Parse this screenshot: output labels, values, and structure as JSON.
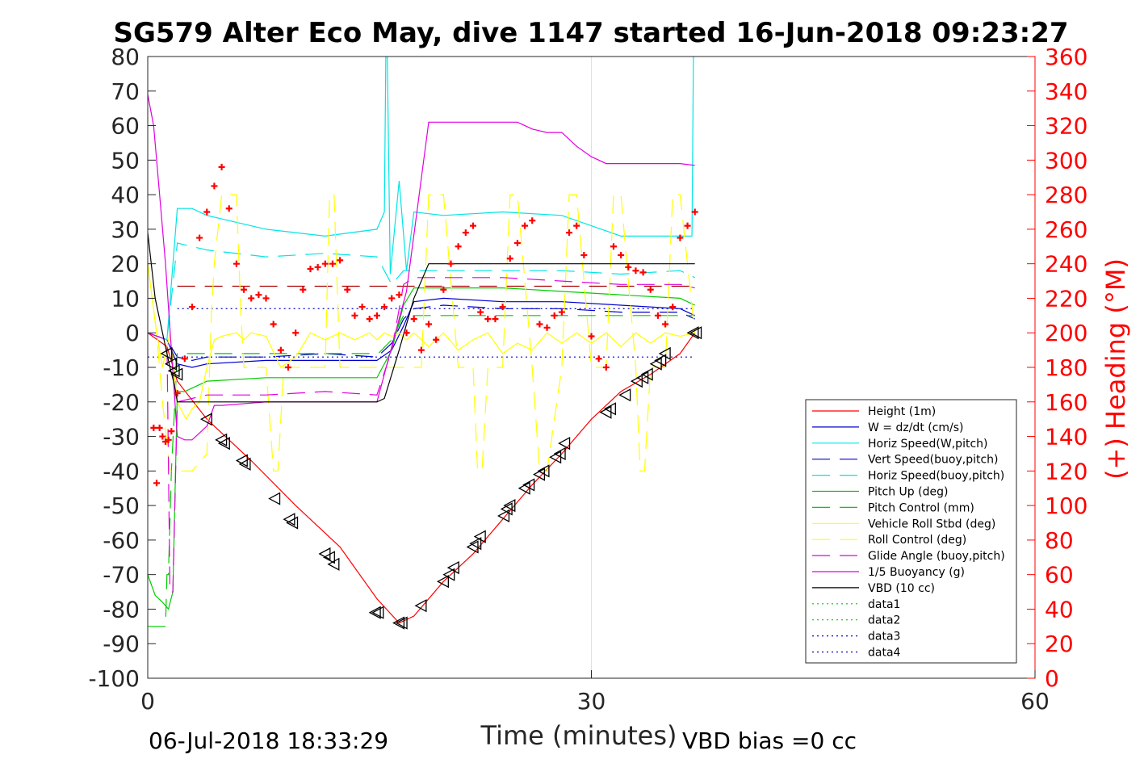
{
  "chart_data": {
    "type": "line",
    "title": "SG579 Alter Eco May, dive 1147 started 16-Jun-2018 09:23:27",
    "xlabel": "Time (minutes)",
    "ylabel_right": "(+) Heading (°M)",
    "xlim": [
      0,
      60
    ],
    "ylim": [
      -100,
      80
    ],
    "ylim_right": [
      0,
      360
    ],
    "xticks": [
      "0",
      "30",
      "60"
    ],
    "yticks": [
      "80",
      "70",
      "60",
      "50",
      "40",
      "30",
      "20",
      "10",
      "0",
      "-10",
      "-20",
      "-30",
      "-40",
      "-50",
      "-60",
      "-70",
      "-80",
      "-90",
      "-100"
    ],
    "yticks_right": [
      "360",
      "340",
      "320",
      "300",
      "280",
      "260",
      "240",
      "220",
      "200",
      "180",
      "160",
      "140",
      "120",
      "100",
      "80",
      "60",
      "40",
      "20",
      "0"
    ],
    "grid": "x only",
    "legend_position": "lower-right",
    "footer_left": "06-Jul-2018 18:33:29",
    "footer_right": "VBD bias =0 cc",
    "series": [
      {
        "name": "Height (1m)",
        "color": "#ff0000",
        "style": "solid",
        "x": [
          0,
          1.3,
          2,
          4,
          7,
          10,
          13,
          15.5,
          17,
          18,
          20,
          22,
          24,
          26,
          28,
          30,
          32,
          34,
          36,
          37
        ],
        "y": [
          0,
          -4,
          -14,
          -25,
          -37,
          -50,
          -62,
          -77,
          -84,
          -82,
          -72,
          -64,
          -54,
          -44,
          -35,
          -25,
          -17,
          -12,
          -6,
          0
        ]
      },
      {
        "name": "W = dz/dt (cm/s)",
        "color": "#0000cc",
        "style": "solid",
        "x": [
          0,
          1.3,
          2,
          3,
          4,
          8,
          12,
          15.5,
          16.5,
          17.3,
          18,
          20,
          24,
          28,
          32,
          36,
          37
        ],
        "y": [
          0,
          -2,
          -9,
          -10,
          -9,
          -8,
          -8,
          -8,
          -5,
          2,
          9,
          10,
          9,
          9,
          8,
          7,
          5
        ]
      },
      {
        "name": "Horiz Speed(W,pitch)",
        "color": "#00e5e5",
        "style": "solid",
        "x": [
          0,
          1.3,
          2,
          3,
          4,
          8,
          12,
          15.5,
          16,
          16.1,
          16.2,
          16.4,
          17,
          17.5,
          18,
          20,
          24,
          28,
          32,
          36,
          36.8,
          36.9,
          37
        ],
        "y": [
          0,
          -2,
          36,
          36,
          34,
          30,
          28,
          30,
          35,
          80,
          80,
          17,
          44,
          18,
          35,
          34,
          35,
          34,
          28,
          28,
          28,
          80,
          80
        ]
      },
      {
        "name": "Vert Speed(buoy,pitch)",
        "color": "#0000cc",
        "style": "dashed",
        "x": [
          0,
          1.3,
          2,
          3,
          4,
          8,
          12,
          15.5,
          16.5,
          17.3,
          18,
          20,
          24,
          28,
          32,
          36,
          37
        ],
        "y": [
          0,
          -2,
          -7,
          -8,
          -7,
          -7,
          -6,
          -7,
          -3,
          4,
          7,
          8,
          7,
          7,
          6,
          6,
          4
        ]
      },
      {
        "name": "Horiz Speed(buoy,pitch)",
        "color": "#00e5e5",
        "style": "dashed",
        "x": [
          0,
          1.3,
          2,
          3,
          4,
          8,
          12,
          15.5,
          16.5,
          17.3,
          18,
          20,
          24,
          28,
          32,
          36,
          37
        ],
        "y": [
          0,
          -2,
          26,
          25,
          24,
          22,
          23,
          22,
          14,
          18,
          18,
          18,
          18,
          18,
          17,
          18,
          16
        ]
      },
      {
        "name": "Pitch Up (deg)",
        "color": "#00cc00",
        "style": "solid",
        "x": [
          0,
          0.5,
          1,
          1.4,
          1.7,
          2,
          2.5,
          3,
          4,
          8,
          12,
          15.5,
          16.5,
          17.3,
          18,
          20,
          24,
          28,
          32,
          36,
          37
        ],
        "y": [
          -70,
          -76,
          -78,
          -80,
          -75,
          -17,
          -17,
          -16,
          -14,
          -13,
          -13,
          -13,
          -5,
          8,
          13,
          13,
          13,
          12,
          11,
          10,
          8
        ]
      },
      {
        "name": "Pitch Control (mm)",
        "color": "#00cc00",
        "style": "dashed",
        "x": [
          0,
          1.2,
          1.3,
          1.4,
          1.6,
          2,
          4,
          8,
          12,
          15.5,
          15.6,
          16.5,
          17.3,
          18,
          20,
          24,
          28,
          32,
          36,
          37
        ],
        "y": [
          -85,
          -85,
          -70,
          -70,
          -40,
          -6,
          -6,
          -6,
          -6,
          -6,
          -6,
          -2,
          5,
          5,
          5,
          5,
          5,
          5,
          5,
          5
        ]
      },
      {
        "name": "Vehicle Roll Stbd (deg)",
        "color": "#ffff00",
        "style": "solid",
        "x": [
          0,
          0.6,
          1,
          1.5,
          2,
          2.6,
          3,
          3.5,
          4,
          4.5,
          5,
          6,
          6.5,
          7,
          8,
          9,
          10,
          11,
          12,
          13,
          14,
          15,
          15.5,
          16,
          16.5,
          17,
          17.5,
          18,
          19,
          20,
          21,
          22,
          23,
          24,
          25,
          26,
          27,
          28,
          29,
          30,
          31,
          32,
          33,
          34,
          35,
          36,
          37
        ],
        "y": [
          20,
          0,
          -10,
          0,
          -20,
          -25,
          -22,
          -20,
          -10,
          -2,
          -1,
          0,
          -2,
          0,
          -1,
          -10,
          -7,
          0,
          -2,
          0,
          -2,
          0,
          -2,
          0,
          -1,
          0,
          -2,
          0,
          -4,
          0,
          -5,
          -2,
          0,
          -6,
          -3,
          -5,
          0,
          -3,
          0,
          -3,
          0,
          -4,
          0,
          -3,
          0,
          -1,
          0
        ]
      },
      {
        "name": "Roll Control (deg)",
        "color": "#ffff00",
        "style": "dashed",
        "x": [
          0,
          0.6,
          1,
          1.5,
          2,
          3,
          4,
          4.3,
          4.5,
          5,
          6,
          6.3,
          6.5,
          7,
          8,
          8.5,
          8.8,
          9.2,
          10,
          11,
          12,
          12.3,
          12.6,
          13,
          14,
          15,
          15.5,
          16,
          17,
          18,
          18.5,
          19,
          20,
          21,
          22,
          22.3,
          22.6,
          23,
          24,
          24.5,
          25,
          26,
          26.5,
          27,
          28,
          28.5,
          29,
          30,
          31,
          31.5,
          32,
          33,
          33.3,
          33.6,
          34,
          35,
          35.5,
          36,
          37
        ],
        "y": [
          20,
          0,
          -20,
          -40,
          -40,
          -40,
          -35,
          5,
          20,
          40,
          40,
          5,
          -10,
          -10,
          -10,
          -40,
          -40,
          -10,
          -10,
          -10,
          -10,
          40,
          40,
          -10,
          -10,
          -10,
          -10,
          -10,
          -10,
          -10,
          -10,
          40,
          40,
          -10,
          -10,
          -40,
          -40,
          -10,
          -10,
          40,
          40,
          -10,
          -40,
          -40,
          -10,
          40,
          40,
          -10,
          -10,
          40,
          40,
          -10,
          -40,
          -40,
          -10,
          -10,
          40,
          40,
          0
        ]
      },
      {
        "name": "Glide Angle (buoy,pitch)",
        "color": "#e000e0",
        "style": "dashed",
        "x": [
          0,
          1.3,
          1.5,
          1.7,
          2,
          3,
          4,
          8,
          12,
          15.5,
          16.5,
          17.3,
          18,
          20,
          24,
          28,
          32,
          36,
          37
        ],
        "y": [
          0,
          -2,
          -75,
          -75,
          -20,
          -19,
          -18,
          -18,
          -17,
          -18,
          -5,
          14,
          16,
          16,
          16,
          15,
          14,
          14,
          13
        ]
      },
      {
        "name": "1/5 Buoyancy (g)",
        "color": "#e000e0",
        "style": "solid",
        "x": [
          0,
          0.4,
          0.8,
          1.2,
          1.6,
          2,
          2.5,
          3,
          4,
          4.5,
          5,
          8,
          12,
          15.5,
          17.5,
          19,
          20,
          22,
          24,
          25,
          25.5,
          26,
          27,
          28,
          29,
          30,
          31,
          33,
          36,
          37
        ],
        "y": [
          69,
          60,
          40,
          20,
          -5,
          -30,
          -31,
          -31,
          -27,
          -21,
          -21,
          -20,
          -20,
          -20,
          12,
          61,
          61,
          61,
          61,
          61,
          60,
          59,
          58,
          58,
          54,
          51,
          49,
          49,
          49,
          48.5
        ]
      },
      {
        "name": "VBD (10 cc)",
        "color": "#000000",
        "style": "solid",
        "x": [
          0,
          0.5,
          1,
          1.5,
          1.8,
          2,
          4,
          8,
          12,
          15.5,
          16,
          17,
          18,
          19,
          20,
          24,
          28,
          32,
          36,
          37
        ],
        "y": [
          29,
          10,
          0,
          -10,
          -15,
          -20,
          -20,
          -20,
          -20,
          -20,
          -19,
          -5,
          10,
          20,
          20,
          20,
          20,
          20,
          20,
          20
        ]
      },
      {
        "name": "data1",
        "color": "#00cc00",
        "style": "dotted",
        "x": [],
        "y": []
      },
      {
        "name": "data2",
        "color": "#00cc00",
        "style": "dotted",
        "x": [],
        "y": []
      },
      {
        "name": "data3",
        "color": "#0000cc",
        "style": "dotted",
        "x": [],
        "y": []
      },
      {
        "name": "data4",
        "color": "#0000cc",
        "style": "dotted",
        "x": [],
        "y": []
      }
    ],
    "reference_lines": [
      {
        "color": "#aa0000",
        "style": "dashed",
        "y": 13.5,
        "x": [
          2,
          37
        ]
      },
      {
        "color": "#0000cc",
        "style": "dotted",
        "y": 7,
        "x": [
          2,
          37
        ]
      },
      {
        "color": "#0000cc",
        "style": "dotted",
        "y": -7,
        "x": [
          0,
          37
        ]
      }
    ],
    "heading_points": {
      "color": "#ff0000",
      "axis": "right",
      "x": [
        0.4,
        0.6,
        0.8,
        1,
        1.2,
        1.4,
        1.6,
        2,
        2.5,
        3,
        3.5,
        4,
        4.5,
        5,
        5.5,
        6,
        6.5,
        7,
        7.5,
        8,
        8.5,
        9,
        9.5,
        10,
        10.5,
        11,
        11.5,
        12,
        12.5,
        13,
        13.5,
        14,
        14.5,
        15,
        15.5,
        16,
        16.5,
        17,
        17.5,
        18,
        18.5,
        19,
        19.5,
        20,
        20.5,
        21,
        21.5,
        22,
        22.5,
        23,
        23.5,
        24,
        24.5,
        25,
        25.5,
        26,
        26.5,
        27,
        27.5,
        28,
        28.5,
        29,
        29.5,
        30,
        30.5,
        31,
        31.5,
        32,
        32.5,
        33,
        33.5,
        34,
        34.5,
        35,
        35.5,
        36,
        36.5,
        37
      ],
      "y": [
        145,
        113,
        145,
        140,
        137,
        138,
        143,
        165,
        185,
        215,
        255,
        270,
        285,
        296,
        272,
        240,
        225,
        220,
        222,
        220,
        205,
        190,
        180,
        200,
        225,
        237,
        238,
        240,
        240,
        242,
        225,
        210,
        215,
        208,
        210,
        215,
        220,
        222,
        200,
        208,
        190,
        205,
        196,
        225,
        240,
        250,
        258,
        262,
        212,
        208,
        208,
        215,
        243,
        252,
        262,
        265,
        205,
        203,
        210,
        212,
        258,
        262,
        245,
        198,
        185,
        180,
        250,
        245,
        238,
        236,
        235,
        225,
        210,
        205,
        215,
        255,
        262,
        270
      ]
    },
    "markers": {
      "color": "#000000",
      "shape": "triangle",
      "x": [
        1.3,
        1.6,
        1.8,
        2,
        4,
        5,
        5.2,
        6.4,
        6.6,
        8.6,
        9.6,
        9.8,
        12,
        12.3,
        12.6,
        15.4,
        15.6,
        17,
        17.2,
        18.5,
        20,
        20.4,
        20.7,
        22,
        22.2,
        22.5,
        24.1,
        24.3,
        24.5,
        25.5,
        25.8,
        26.5,
        26.8,
        27.6,
        27.9,
        28.2,
        31,
        31.3,
        32.3,
        33.1,
        33.5,
        33.8,
        34.4,
        34.7,
        35,
        36.9,
        37.1
      ],
      "y": [
        -6,
        -9,
        -11,
        -12,
        -25,
        -31,
        -32,
        -37,
        -38,
        -48,
        -54,
        -55,
        -64,
        -65,
        -67,
        -81,
        -81,
        -84,
        -84,
        -79,
        -72,
        -70,
        -68,
        -62,
        -61,
        -59,
        -53,
        -51,
        -50,
        -45,
        -44,
        -41,
        -40,
        -36,
        -35,
        -32,
        -23,
        -22,
        -18,
        -14,
        -13,
        -12,
        -9,
        -8,
        -6,
        0,
        0
      ]
    }
  }
}
